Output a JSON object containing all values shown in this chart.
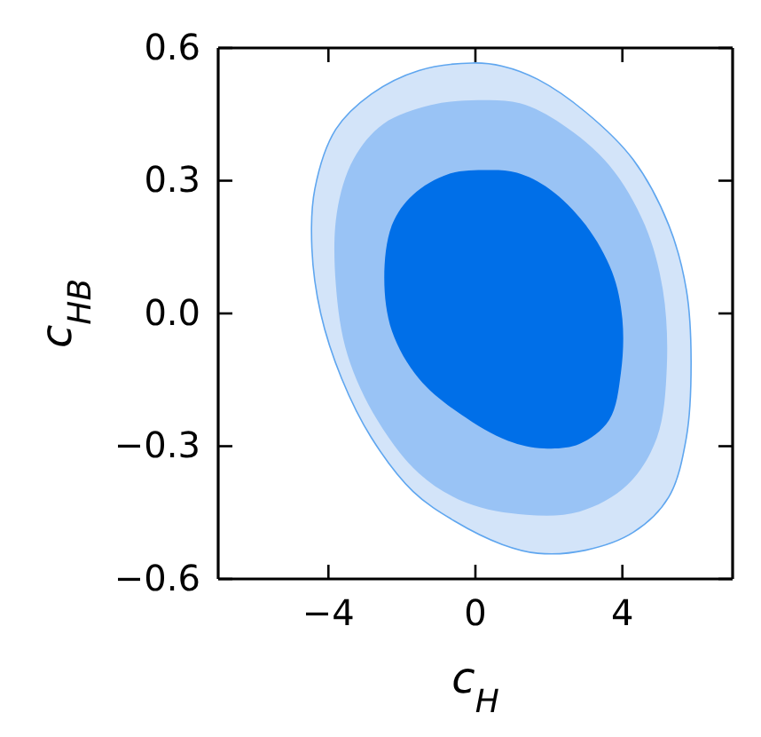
{
  "chart_data": {
    "type": "area",
    "xlabel": "c$_{H}$",
    "ylabel": "c$_{HB}$",
    "xlim": [
      -7,
      7
    ],
    "ylim": [
      -0.6,
      0.6
    ],
    "xticks": [
      {
        "value": -4,
        "label": "−4"
      },
      0,
      4
    ],
    "yticks": [
      {
        "value": -0.6,
        "label": "−0.6"
      },
      {
        "value": -0.3,
        "label": "−0.3"
      },
      {
        "value": 0,
        "label": "0.0"
      },
      0.3,
      0.6
    ],
    "series": [
      {
        "color": "#d3e4f9",
        "x": [
          -0.08,
          -1.54,
          -2.83,
          -3.8,
          -4.37,
          -4.45,
          -4.21,
          -3.64,
          -2.83,
          -1.7,
          -0.57,
          0.73,
          1.7,
          3.0,
          4.29,
          5.26,
          5.74,
          5.87,
          5.74,
          5.26,
          4.29,
          3.0,
          1.7,
          0.73
        ],
        "values": [
          0.566,
          0.549,
          0.496,
          0.416,
          0.281,
          0.147,
          0,
          -0.147,
          -0.281,
          -0.402,
          -0.469,
          -0.522,
          -0.542,
          -0.535,
          -0.495,
          -0.415,
          -0.281,
          -0.107,
          0.054,
          0.2,
          0.348,
          0.455,
          0.529,
          0.559
        ]
      },
      {
        "color": "#99c3f5",
        "x": [
          0.08,
          -1.21,
          -2.51,
          -3.32,
          -3.77,
          -3.8,
          -3.48,
          -2.67,
          -1.54,
          -0.24,
          1.38,
          2.83,
          4.13,
          4.94,
          5.21,
          5.1,
          4.61,
          3.64,
          2.35,
          1.21
        ],
        "values": [
          0.482,
          0.471,
          0.428,
          0.348,
          0.228,
          0.067,
          -0.094,
          -0.241,
          -0.361,
          -0.428,
          -0.455,
          -0.448,
          -0.388,
          -0.281,
          -0.12,
          0.054,
          0.2,
          0.335,
          0.428,
          0.475
        ]
      },
      {
        "color": "#006fe8",
        "x": [
          0.32,
          -0.73,
          -1.7,
          -2.27,
          -2.48,
          -2.27,
          -1.54,
          -0.4,
          0.89,
          1.86,
          2.83,
          3.64,
          3.96,
          4.0,
          3.72,
          2.99,
          2.02,
          1.13
        ],
        "values": [
          0.324,
          0.315,
          0.268,
          0.2,
          0.08,
          -0.04,
          -0.147,
          -0.228,
          -0.288,
          -0.305,
          -0.295,
          -0.241,
          -0.134,
          -0.013,
          0.094,
          0.201,
          0.281,
          0.318
        ]
      }
    ]
  }
}
